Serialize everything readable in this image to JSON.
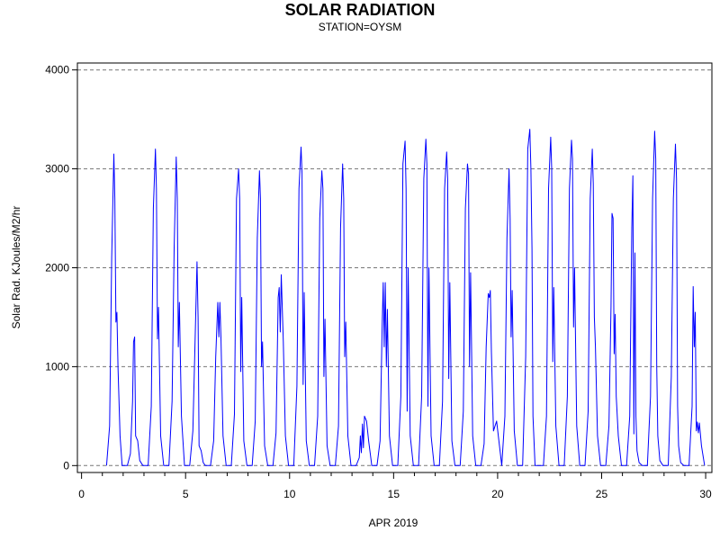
{
  "chart_data": {
    "type": "line",
    "title": "SOLAR RADIATION",
    "subtitle": "STATION=OYSM",
    "xlabel": "APR 2019",
    "ylabel": "Solar Rad. KJoules/M2/hr",
    "xlim": [
      -0.2,
      30.3
    ],
    "ylim": [
      -70,
      4070
    ],
    "xticks": [
      0,
      5,
      10,
      15,
      20,
      25,
      30
    ],
    "xtick_labels": [
      "0",
      "5",
      "10",
      "15",
      "20",
      "25",
      "30"
    ],
    "yticks": [
      0,
      1000,
      2000,
      3000,
      4000
    ],
    "ytick_labels": [
      "0",
      "1000",
      "2000",
      "3000",
      "4000"
    ],
    "grid": "horizontal dashed",
    "series": [
      {
        "color": "#0000ff",
        "x": [
          1.2,
          1.35,
          1.45,
          1.55,
          1.6,
          1.65,
          1.7,
          1.75,
          1.85,
          1.95,
          2.2,
          2.35,
          2.45,
          2.5,
          2.55,
          2.6,
          2.7,
          2.8,
          2.95,
          3.2,
          3.35,
          3.45,
          3.55,
          3.6,
          3.65,
          3.7,
          3.8,
          3.95,
          4.2,
          4.35,
          4.45,
          4.55,
          4.6,
          4.65,
          4.7,
          4.8,
          4.95,
          5.2,
          5.35,
          5.45,
          5.55,
          5.6,
          5.65,
          5.75,
          5.85,
          5.95,
          6.2,
          6.35,
          6.45,
          6.55,
          6.6,
          6.65,
          6.7,
          6.8,
          6.95,
          7.2,
          7.35,
          7.45,
          7.55,
          7.6,
          7.65,
          7.7,
          7.8,
          7.95,
          8.2,
          8.35,
          8.45,
          8.55,
          8.6,
          8.65,
          8.7,
          8.8,
          8.95,
          9.2,
          9.35,
          9.45,
          9.5,
          9.55,
          9.6,
          9.7,
          9.8,
          9.95,
          10.2,
          10.35,
          10.45,
          10.55,
          10.6,
          10.65,
          10.7,
          10.8,
          10.95,
          11.2,
          11.35,
          11.45,
          11.55,
          11.6,
          11.65,
          11.7,
          11.8,
          11.95,
          12.2,
          12.35,
          12.45,
          12.55,
          12.6,
          12.65,
          12.7,
          12.8,
          12.95,
          13.2,
          13.35,
          13.4,
          13.45,
          13.5,
          13.55,
          13.6,
          13.7,
          13.8,
          13.95,
          14.2,
          14.35,
          14.45,
          14.5,
          14.55,
          14.6,
          14.65,
          14.7,
          14.8,
          14.95,
          15.2,
          15.35,
          15.45,
          15.55,
          15.6,
          15.65,
          15.7,
          15.8,
          15.95,
          16.2,
          16.35,
          16.45,
          16.55,
          16.6,
          16.65,
          16.7,
          16.8,
          16.95,
          17.2,
          17.35,
          17.45,
          17.55,
          17.6,
          17.65,
          17.7,
          17.8,
          17.95,
          18.2,
          18.35,
          18.45,
          18.55,
          18.6,
          18.65,
          18.7,
          18.8,
          18.95,
          19.2,
          19.35,
          19.45,
          19.55,
          19.6,
          19.65,
          19.7,
          19.8,
          19.95,
          20.2,
          20.35,
          20.45,
          20.55,
          20.6,
          20.65,
          20.7,
          20.8,
          20.95,
          21.2,
          21.35,
          21.45,
          21.55,
          21.6,
          21.65,
          21.7,
          21.8,
          21.95,
          22.2,
          22.35,
          22.45,
          22.55,
          22.6,
          22.65,
          22.7,
          22.8,
          22.95,
          23.2,
          23.35,
          23.45,
          23.55,
          23.6,
          23.65,
          23.7,
          23.8,
          23.95,
          24.2,
          24.35,
          24.45,
          24.55,
          24.6,
          24.65,
          24.7,
          24.8,
          24.95,
          25.2,
          25.35,
          25.45,
          25.5,
          25.55,
          25.6,
          25.65,
          25.7,
          25.8,
          25.95,
          26.2,
          26.35,
          26.45,
          26.5,
          26.55,
          26.6,
          26.65,
          26.7,
          26.8,
          26.95,
          27.2,
          27.35,
          27.45,
          27.55,
          27.6,
          27.65,
          27.7,
          27.8,
          27.95,
          28.2,
          28.35,
          28.45,
          28.55,
          28.6,
          28.65,
          28.7,
          28.8,
          28.95,
          29.2,
          29.35,
          29.4,
          29.45,
          29.5,
          29.55,
          29.6,
          29.65,
          29.7,
          29.8,
          29.95
        ],
        "y": [
          0,
          400,
          2100,
          3150,
          2700,
          1450,
          1550,
          1000,
          300,
          0,
          0,
          120,
          650,
          1250,
          1300,
          300,
          250,
          50,
          0,
          0,
          600,
          2600,
          3200,
          2800,
          1280,
          1600,
          300,
          0,
          0,
          650,
          2200,
          3120,
          2700,
          1200,
          1650,
          500,
          0,
          0,
          350,
          1200,
          2060,
          1500,
          200,
          150,
          30,
          0,
          0,
          250,
          1100,
          1650,
          1300,
          1650,
          1300,
          300,
          0,
          0,
          520,
          2700,
          3000,
          2700,
          950,
          1700,
          250,
          0,
          0,
          450,
          2300,
          2980,
          2700,
          1000,
          1250,
          200,
          0,
          0,
          330,
          1700,
          1800,
          1350,
          1930,
          1250,
          300,
          0,
          0,
          800,
          2800,
          3220,
          2950,
          820,
          1750,
          250,
          0,
          0,
          500,
          2500,
          2980,
          2800,
          900,
          1480,
          200,
          0,
          0,
          400,
          2400,
          3050,
          2700,
          1100,
          1450,
          300,
          0,
          0,
          80,
          300,
          130,
          420,
          180,
          500,
          450,
          250,
          0,
          0,
          250,
          1400,
          1850,
          1200,
          1850,
          1000,
          1580,
          300,
          0,
          0,
          700,
          3050,
          3280,
          2800,
          550,
          2000,
          300,
          0,
          0,
          700,
          2900,
          3300,
          3050,
          600,
          2000,
          300,
          0,
          0,
          650,
          2800,
          3170,
          2900,
          880,
          1850,
          250,
          0,
          0,
          550,
          2600,
          3050,
          2950,
          1000,
          1950,
          300,
          0,
          0,
          220,
          1200,
          1740,
          1700,
          1770,
          1150,
          350,
          450,
          0,
          500,
          2300,
          3000,
          2500,
          1300,
          1770,
          350,
          0,
          0,
          1100,
          3200,
          3400,
          3000,
          2200,
          500,
          0,
          0,
          0,
          500,
          2800,
          3320,
          3000,
          1050,
          1800,
          400,
          0,
          0,
          700,
          2800,
          3290,
          3100,
          1400,
          2000,
          400,
          0,
          0,
          550,
          2700,
          3200,
          2850,
          1500,
          1200,
          300,
          0,
          0,
          400,
          1600,
          2550,
          2500,
          1130,
          1530,
          700,
          300,
          0,
          0,
          500,
          2400,
          2930,
          320,
          2150,
          500,
          150,
          30,
          0,
          0,
          700,
          2700,
          3380,
          3100,
          1000,
          300,
          50,
          0,
          0,
          900,
          2700,
          3250,
          2900,
          600,
          200,
          30,
          0,
          0,
          600,
          1810,
          1200,
          1550,
          350,
          440,
          330,
          430,
          200,
          0
        ]
      }
    ]
  }
}
